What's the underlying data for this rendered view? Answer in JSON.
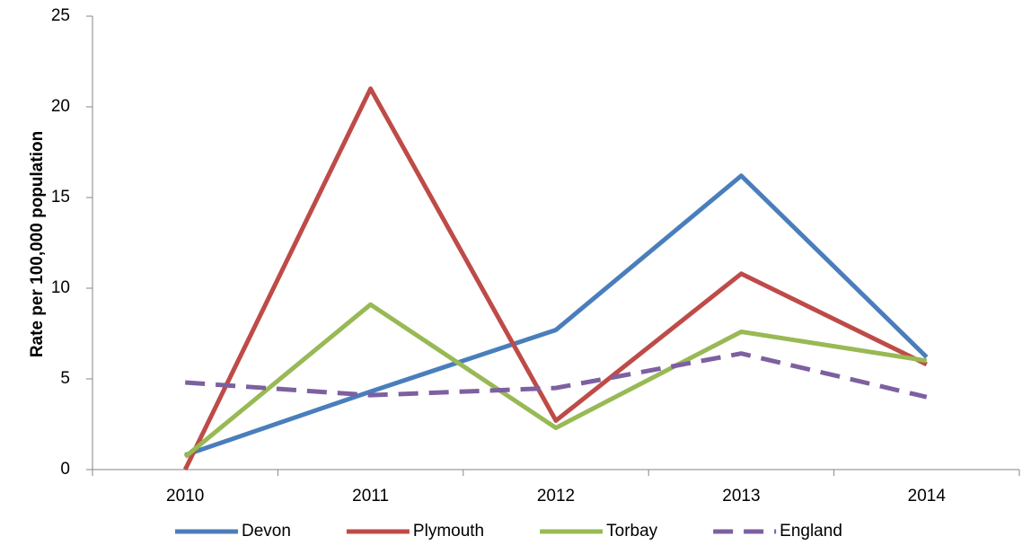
{
  "chart_data": {
    "type": "line",
    "y_label": "Rate per 100,000 population",
    "categories": [
      "2010",
      "2011",
      "2012",
      "2013",
      "2014"
    ],
    "series": [
      {
        "name": "Devon",
        "color": "#4a7ebb",
        "values": [
          0.8,
          4.3,
          7.7,
          16.2,
          6.2
        ]
      },
      {
        "name": "Plymouth",
        "color": "#be4b48",
        "values": [
          0,
          21.0,
          2.7,
          10.8,
          5.8
        ]
      },
      {
        "name": "Torbay",
        "color": "#98b954",
        "values": [
          0.7,
          9.1,
          2.3,
          7.6,
          6.0
        ]
      },
      {
        "name": "England",
        "color": "#7d60a0",
        "dashed": true,
        "values": [
          4.8,
          4.1,
          4.5,
          6.4,
          4.0
        ]
      }
    ],
    "ylim": [
      0,
      25
    ],
    "yticks": [
      0,
      5,
      10,
      15,
      20,
      25
    ],
    "grid": false,
    "legend": "bottom"
  }
}
